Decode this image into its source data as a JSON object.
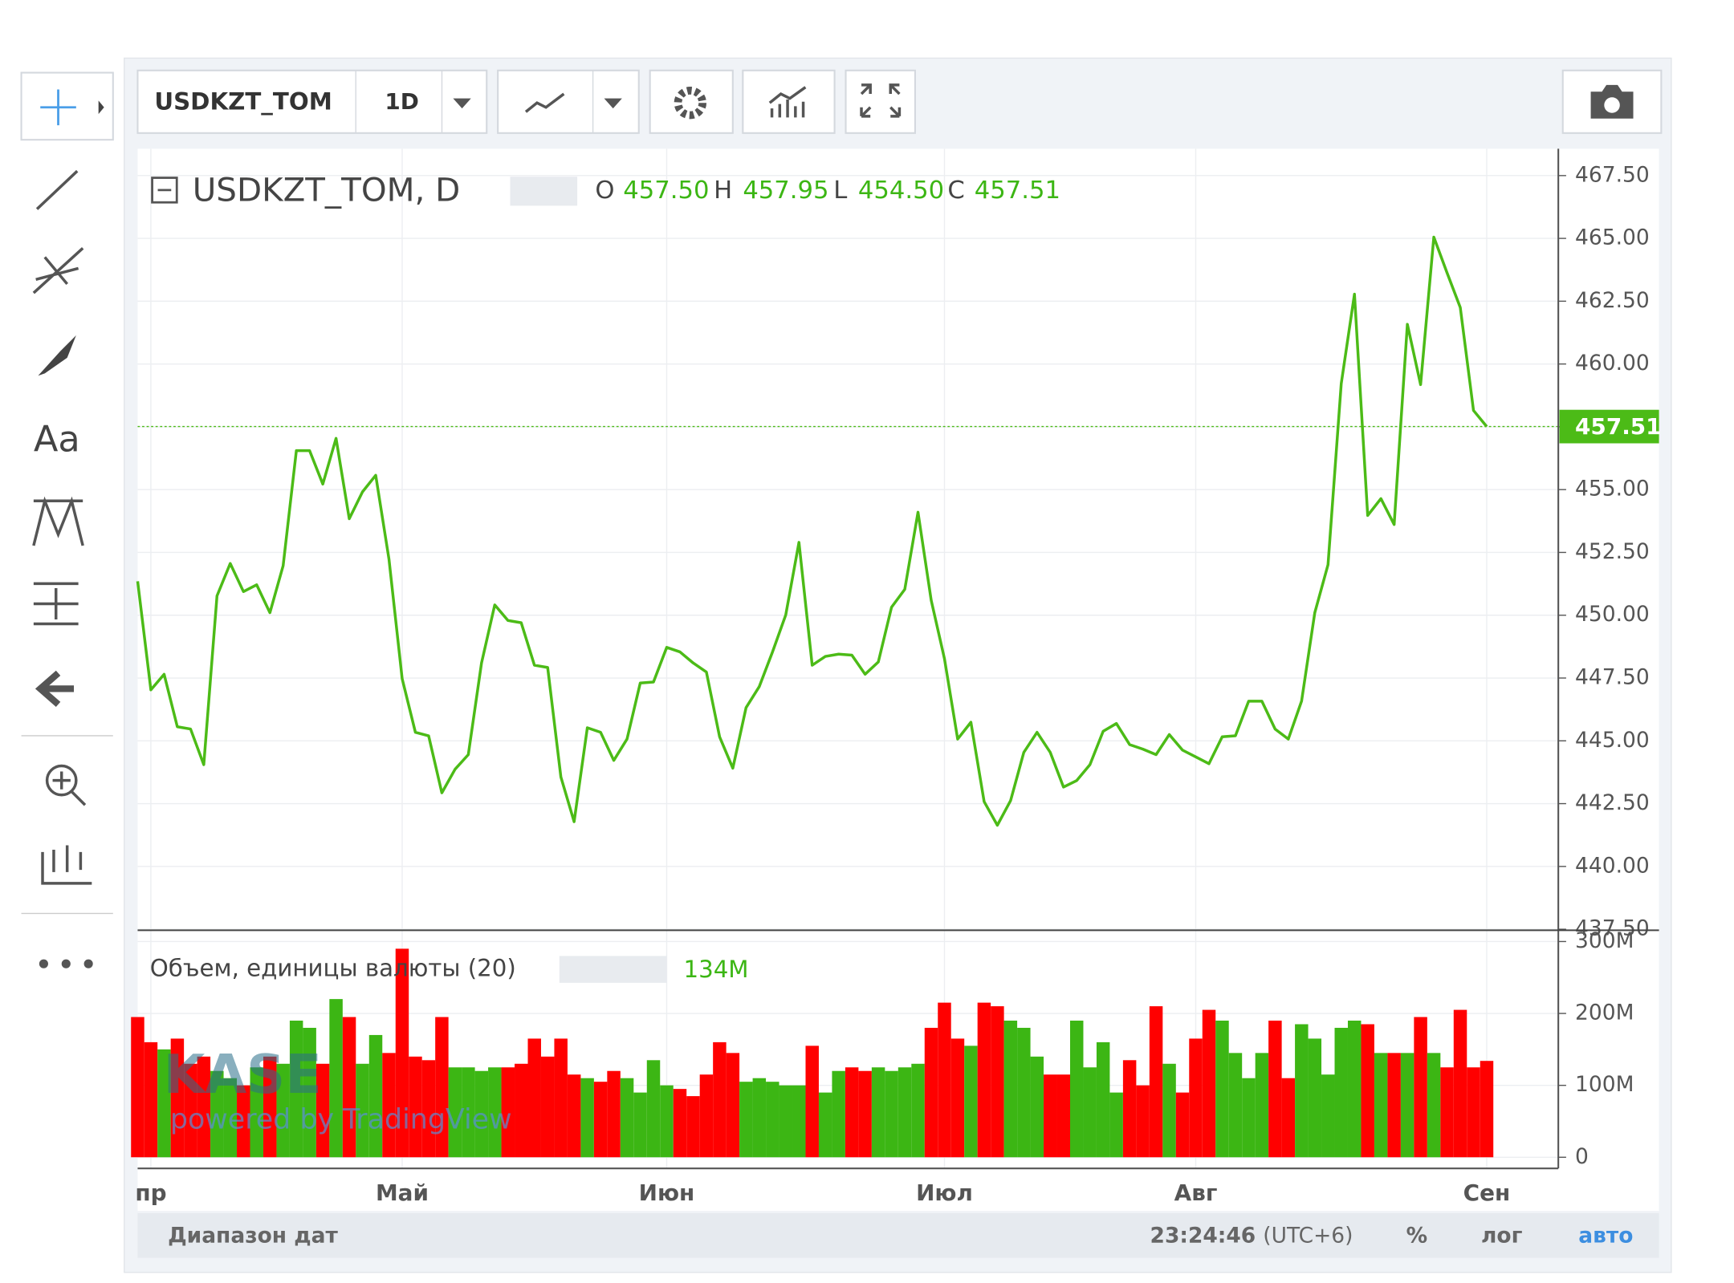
{
  "ui": {
    "symbol": "USDKZT_TOM",
    "interval": "1D",
    "text_tool": "Aa",
    "legend_title": "USDKZT_TOM, D",
    "ohlc": {
      "o_label": "O",
      "o": "457.50",
      "h_label": "H",
      "h": "457.95",
      "l_label": "L",
      "l": "454.50",
      "c_label": "C",
      "c": "457.51"
    },
    "volume_title": "Объем, единицы валюты (20)",
    "volume_value": "134M",
    "watermark": "KASE",
    "watermark_sub": "powered by TradingView",
    "date_range": "Диапазон дат",
    "time": "23:24:46",
    "timezone": "(UTC+6)",
    "percent": "%",
    "log": "лог",
    "auto": "авто"
  },
  "chart_data": [
    {
      "type": "line",
      "name": "USDKZT_TOM",
      "color": "#4cbb17",
      "categories": [
        null,
        "пр",
        null,
        null,
        null,
        null,
        null,
        null,
        null,
        null,
        null,
        null,
        null,
        null,
        null,
        null,
        null,
        null,
        null,
        null,
        "Май",
        null,
        null,
        null,
        null,
        null,
        null,
        null,
        null,
        null,
        null,
        null,
        null,
        null,
        null,
        null,
        null,
        null,
        null,
        null,
        "Июн",
        null,
        null,
        null,
        null,
        null,
        null,
        null,
        null,
        null,
        null,
        null,
        null,
        null,
        null,
        null,
        null,
        null,
        null,
        null,
        null,
        "Июл",
        null,
        null,
        null,
        null,
        null,
        null,
        null,
        null,
        null,
        null,
        null,
        null,
        null,
        null,
        null,
        null,
        null,
        null,
        "Авг",
        null,
        null,
        null,
        null,
        null,
        null,
        null,
        null,
        null,
        null,
        null,
        null,
        null,
        null,
        null,
        null,
        null,
        null,
        null,
        null,
        null,
        "Сен"
      ],
      "values": [
        451.35,
        447.03,
        447.65,
        445.56,
        445.47,
        444.05,
        450.77,
        452.06,
        450.94,
        451.21,
        450.1,
        451.97,
        456.55,
        456.55,
        455.22,
        457.04,
        453.84,
        454.91,
        455.57,
        452.24,
        447.47,
        445.34,
        445.2,
        442.93,
        443.87,
        444.45,
        448.1,
        450.41,
        449.79,
        449.7,
        448.01,
        447.92,
        443.56,
        441.78,
        445.52,
        445.34,
        444.22,
        445.07,
        447.3,
        447.34,
        448.72,
        448.54,
        448.1,
        447.74,
        445.16,
        443.91,
        446.32,
        447.16,
        448.54,
        450.01,
        452.9,
        448.01,
        448.36,
        448.45,
        448.41,
        447.65,
        448.14,
        450.32,
        451.03,
        454.1,
        450.59,
        448.27,
        445.07,
        445.74,
        442.58,
        441.64,
        442.62,
        444.54,
        445.34,
        444.54,
        443.16,
        443.42,
        444.05,
        445.38,
        445.69,
        444.85,
        444.67,
        444.45,
        445.25,
        444.63,
        444.36,
        444.09,
        445.16,
        445.2,
        446.58,
        446.58,
        445.47,
        445.07,
        446.58,
        450.1,
        452.01,
        459.22,
        462.78,
        453.97,
        454.64,
        453.61,
        461.58,
        459.18,
        465.05,
        463.63,
        462.25,
        458.15,
        457.51
      ],
      "ylim": [
        437.46,
        468.57
      ],
      "yticks": [
        {
          "value": 437.5,
          "label": "437.50"
        },
        {
          "value": 440,
          "label": "440.00"
        },
        {
          "value": 442.5,
          "label": "442.50"
        },
        {
          "value": 445,
          "label": "445.00"
        },
        {
          "value": 447.5,
          "label": "447.50"
        },
        {
          "value": 450,
          "label": "450.00"
        },
        {
          "value": 452.5,
          "label": "452.50"
        },
        {
          "value": 455,
          "label": "455.00"
        },
        {
          "value": 457.5,
          "label": "457.50"
        },
        {
          "value": 460,
          "label": "460.00"
        },
        {
          "value": 462.5,
          "label": "462.50"
        },
        {
          "value": 465,
          "label": "465.00"
        },
        {
          "value": 467.5,
          "label": "467.50"
        }
      ],
      "grid": true
    },
    {
      "type": "bar",
      "name": "Объем",
      "values": [
        195000000,
        160000000,
        150000000,
        165000000,
        130000000,
        140000000,
        120000000,
        110000000,
        100000000,
        125000000,
        140000000,
        130000000,
        190000000,
        180000000,
        130000000,
        220000000,
        195000000,
        130000000,
        170000000,
        145000000,
        290000000,
        140000000,
        135000000,
        195000000,
        125000000,
        125000000,
        120000000,
        125000000,
        125000000,
        130000000,
        165000000,
        140000000,
        165000000,
        115000000,
        110000000,
        105000000,
        120000000,
        110000000,
        90000000,
        135000000,
        100000000,
        95000000,
        85000000,
        115000000,
        160000000,
        145000000,
        105000000,
        110000000,
        105000000,
        100000000,
        100000000,
        155000000,
        90000000,
        120000000,
        125000000,
        120000000,
        125000000,
        120000000,
        125000000,
        130000000,
        180000000,
        215000000,
        165000000,
        155000000,
        215000000,
        210000000,
        190000000,
        180000000,
        140000000,
        115000000,
        115000000,
        190000000,
        125000000,
        160000000,
        90000000,
        135000000,
        100000000,
        210000000,
        130000000,
        90000000,
        165000000,
        205000000,
        190000000,
        145000000,
        110000000,
        145000000,
        190000000,
        110000000,
        185000000,
        165000000,
        115000000,
        180000000,
        190000000,
        185000000,
        145000000,
        145000000,
        145000000,
        195000000,
        145000000,
        125000000,
        205000000,
        125000000,
        134000000
      ],
      "colors": [
        "#ff0000",
        "#ff0000",
        "#3cb614",
        "#ff0000",
        "#ff0000",
        "#ff0000",
        "#3cb614",
        "#3cb614",
        "#ff0000",
        "#3cb614",
        "#ff0000",
        "#3cb614",
        "#3cb614",
        "#3cb614",
        "#ff0000",
        "#3cb614",
        "#ff0000",
        "#3cb614",
        "#3cb614",
        "#ff0000",
        "#ff0000",
        "#ff0000",
        "#ff0000",
        "#ff0000",
        "#3cb614",
        "#3cb614",
        "#3cb614",
        "#3cb614",
        "#ff0000",
        "#ff0000",
        "#ff0000",
        "#ff0000",
        "#ff0000",
        "#ff0000",
        "#3cb614",
        "#ff0000",
        "#ff0000",
        "#3cb614",
        "#3cb614",
        "#3cb614",
        "#3cb614",
        "#ff0000",
        "#ff0000",
        "#ff0000",
        "#ff0000",
        "#ff0000",
        "#3cb614",
        "#3cb614",
        "#3cb614",
        "#3cb614",
        "#3cb614",
        "#ff0000",
        "#3cb614",
        "#3cb614",
        "#ff0000",
        "#ff0000",
        "#3cb614",
        "#3cb614",
        "#3cb614",
        "#3cb614",
        "#ff0000",
        "#ff0000",
        "#ff0000",
        "#3cb614",
        "#ff0000",
        "#ff0000",
        "#3cb614",
        "#3cb614",
        "#3cb614",
        "#ff0000",
        "#ff0000",
        "#3cb614",
        "#3cb614",
        "#3cb614",
        "#3cb614",
        "#ff0000",
        "#ff0000",
        "#ff0000",
        "#3cb614",
        "#ff0000",
        "#ff0000",
        "#ff0000",
        "#3cb614",
        "#3cb614",
        "#3cb614",
        "#3cb614",
        "#ff0000",
        "#ff0000",
        "#3cb614",
        "#3cb614",
        "#3cb614",
        "#3cb614",
        "#3cb614",
        "#ff0000",
        "#3cb614",
        "#ff0000",
        "#3cb614",
        "#ff0000",
        "#3cb614",
        "#ff0000",
        "#ff0000",
        "#ff0000",
        "#ff0000"
      ],
      "ylim": [
        -15500000,
        315700000
      ],
      "yticks": [
        0,
        {
          "value": 100000000,
          "label": "100M"
        },
        {
          "value": 200000000,
          "label": "200M"
        },
        {
          "value": 300000000,
          "label": "300M"
        }
      ],
      "grid": true
    }
  ]
}
